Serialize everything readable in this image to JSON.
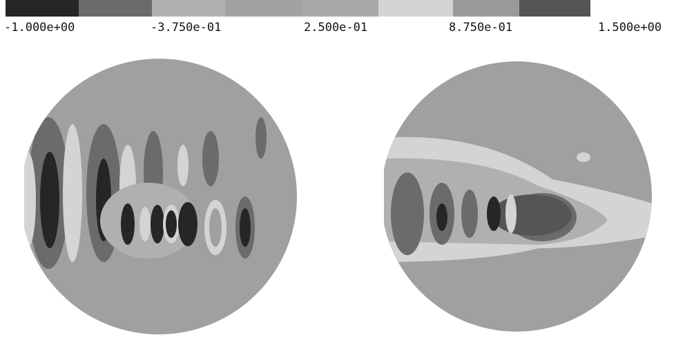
{
  "colorbar": {
    "labels": [
      "-1.000e+00",
      "-3.750e-01",
      "2.500e-01",
      "8.750e-01",
      "1.500e+00"
    ]
  }
}
